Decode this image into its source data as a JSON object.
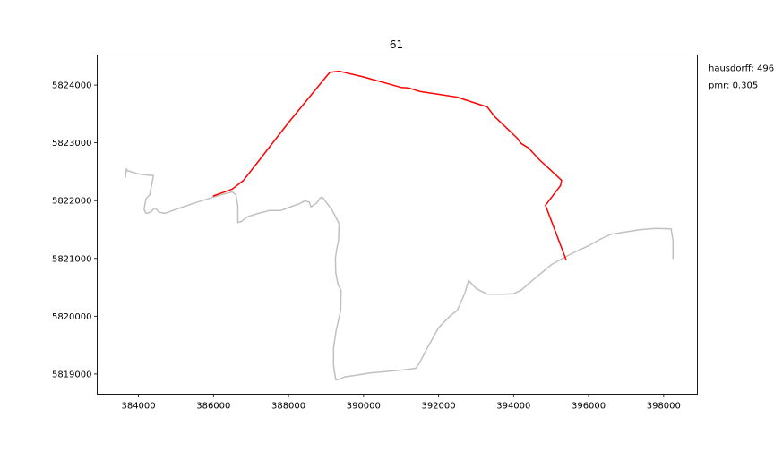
{
  "chart_data": {
    "type": "line",
    "title": "61",
    "xlabel": "",
    "ylabel": "",
    "xlim": [
      382900,
      398900
    ],
    "ylim": [
      5818650,
      5824520
    ],
    "xticks": [
      384000,
      386000,
      388000,
      390000,
      392000,
      394000,
      396000,
      398000
    ],
    "xtick_labels": [
      "384000",
      "386000",
      "388000",
      "390000",
      "392000",
      "394000",
      "396000",
      "398000"
    ],
    "yticks": [
      5819000,
      5820000,
      5821000,
      5822000,
      5823000,
      5824000
    ],
    "ytick_labels": [
      "5819000",
      "5820000",
      "5821000",
      "5822000",
      "5823000",
      "5824000"
    ],
    "grid": false,
    "annotations": [
      {
        "key": "hausdorff",
        "text": "hausdorff: 496"
      },
      {
        "key": "pmr",
        "text": "pmr: 0.305"
      }
    ],
    "series": [
      {
        "color": "#c0c0c0",
        "x": [
          383650,
          383680,
          383700,
          384000,
          384400,
          384300,
          384200,
          384150,
          384200,
          384330,
          384420,
          384480,
          384550,
          384700,
          385000,
          385500,
          386000,
          386300,
          386500,
          386600,
          386650,
          386650,
          386750,
          386900,
          387200,
          387500,
          387800,
          388000,
          388300,
          388450,
          388500,
          388550,
          388600,
          388750,
          388850,
          388900,
          389150,
          389350,
          389330,
          389280,
          389250,
          389260,
          389320,
          389400,
          389390,
          389270,
          389200,
          389200,
          389260,
          389350,
          389500,
          389800,
          390200,
          390700,
          391200,
          391400,
          391500,
          391700,
          392000,
          392300,
          392500,
          392700,
          392800,
          393000,
          393300,
          393700,
          394000,
          394200,
          394500,
          394800,
          395000,
          395300,
          395600,
          396000,
          396300,
          396600,
          397000,
          397400,
          397800,
          398200,
          398250,
          398250
        ],
        "y": [
          5822400,
          5822550,
          5822520,
          5822460,
          5822430,
          5822100,
          5822030,
          5821850,
          5821780,
          5821800,
          5821870,
          5821850,
          5821800,
          5821780,
          5821850,
          5821960,
          5822060,
          5822120,
          5822150,
          5822100,
          5821900,
          5821620,
          5821640,
          5821720,
          5821780,
          5821830,
          5821830,
          5821880,
          5821950,
          5822000,
          5821980,
          5821980,
          5821890,
          5821960,
          5822050,
          5822060,
          5821850,
          5821600,
          5821300,
          5821150,
          5821000,
          5820750,
          5820550,
          5820450,
          5820100,
          5819750,
          5819450,
          5819150,
          5818900,
          5818910,
          5818950,
          5818980,
          5819020,
          5819050,
          5819080,
          5819100,
          5819200,
          5819450,
          5819800,
          5820000,
          5820100,
          5820400,
          5820620,
          5820480,
          5820380,
          5820380,
          5820390,
          5820450,
          5820620,
          5820780,
          5820890,
          5821000,
          5821100,
          5821220,
          5821330,
          5821420,
          5821460,
          5821500,
          5821520,
          5821510,
          5821300,
          5821000
        ]
      },
      {
        "color": "#ff0000",
        "x": [
          386000,
          386500,
          386800,
          387100,
          388000,
          389100,
          389350,
          390000,
          391000,
          391200,
          391500,
          392500,
          393300,
          393500,
          394100,
          394200,
          394400,
          394700,
          395000,
          395280,
          395250,
          394850,
          395400
        ],
        "y": [
          5822080,
          5822200,
          5822350,
          5822600,
          5823350,
          5824220,
          5824240,
          5824140,
          5823960,
          5823950,
          5823890,
          5823790,
          5823620,
          5823450,
          5823080,
          5822990,
          5822910,
          5822700,
          5822520,
          5822350,
          5822260,
          5821920,
          5820980
        ]
      }
    ]
  }
}
